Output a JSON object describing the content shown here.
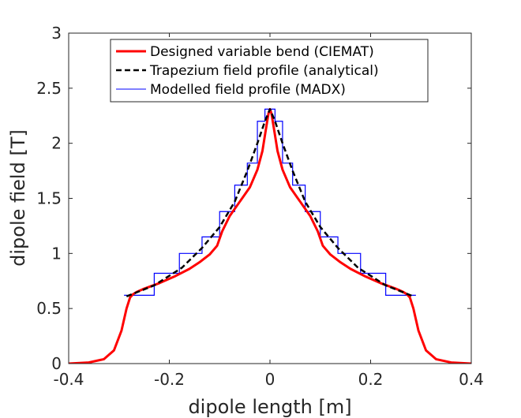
{
  "chart_data": {
    "type": "line",
    "title": "",
    "xlabel": "dipole length [m]",
    "ylabel": "dipole field [T]",
    "xlim": [
      -0.4,
      0.4
    ],
    "ylim": [
      0,
      3
    ],
    "x_ticks": [
      -0.4,
      -0.2,
      0,
      0.2,
      0.4
    ],
    "x_tick_labels": [
      "-0.4",
      "-0.2",
      "0",
      "0.2",
      "0.4"
    ],
    "y_ticks": [
      0,
      0.5,
      1,
      1.5,
      2,
      2.5,
      3
    ],
    "y_tick_labels": [
      "0",
      "0.5",
      "1",
      "1.5",
      "2",
      "2.5",
      "3"
    ],
    "legend_position": "top-center",
    "series": [
      {
        "name": "Designed variable bend (CIEMAT)",
        "style": "solid",
        "color": "#ff0000",
        "x": [
          -0.4,
          -0.36,
          -0.33,
          -0.31,
          -0.295,
          -0.285,
          -0.278,
          -0.272,
          -0.265,
          -0.25,
          -0.22,
          -0.19,
          -0.16,
          -0.14,
          -0.12,
          -0.105,
          -0.095,
          -0.08,
          -0.06,
          -0.04,
          -0.025,
          -0.015,
          -0.008,
          -0.003,
          0,
          0.003,
          0.008,
          0.015,
          0.025,
          0.04,
          0.06,
          0.08,
          0.095,
          0.105,
          0.12,
          0.14,
          0.16,
          0.19,
          0.22,
          0.25,
          0.265,
          0.272,
          0.278,
          0.285,
          0.295,
          0.31,
          0.33,
          0.36,
          0.4
        ],
        "y": [
          0.0,
          0.01,
          0.04,
          0.12,
          0.3,
          0.5,
          0.6,
          0.63,
          0.65,
          0.68,
          0.73,
          0.79,
          0.86,
          0.92,
          0.99,
          1.07,
          1.2,
          1.34,
          1.47,
          1.6,
          1.76,
          1.93,
          2.13,
          2.27,
          2.31,
          2.27,
          2.13,
          1.93,
          1.76,
          1.6,
          1.47,
          1.34,
          1.2,
          1.07,
          0.99,
          0.92,
          0.86,
          0.79,
          0.73,
          0.68,
          0.65,
          0.63,
          0.6,
          0.5,
          0.3,
          0.12,
          0.04,
          0.01,
          0.0
        ]
      },
      {
        "name": "Trapezium field profile (analytical)",
        "style": "dashed",
        "color": "#000000",
        "x": [
          -0.285,
          -0.23,
          -0.175,
          -0.135,
          -0.1,
          -0.07,
          -0.045,
          -0.025,
          -0.01,
          0,
          0.01,
          0.025,
          0.045,
          0.07,
          0.1,
          0.135,
          0.175,
          0.23,
          0.285
        ],
        "y": [
          0.61,
          0.71,
          0.87,
          1.05,
          1.24,
          1.47,
          1.75,
          2.0,
          2.2,
          2.31,
          2.2,
          2.0,
          1.75,
          1.47,
          1.24,
          1.05,
          0.87,
          0.71,
          0.61
        ]
      },
      {
        "name": "Modelled field profile (MADX)",
        "style": "step",
        "color": "#0000ff",
        "x": [
          -0.29,
          -0.23,
          -0.23,
          -0.18,
          -0.18,
          -0.135,
          -0.135,
          -0.1,
          -0.1,
          -0.07,
          -0.07,
          -0.045,
          -0.045,
          -0.025,
          -0.025,
          -0.01,
          -0.01,
          0.01,
          0.01,
          0.025,
          0.025,
          0.045,
          0.045,
          0.07,
          0.07,
          0.1,
          0.1,
          0.135,
          0.135,
          0.18,
          0.18,
          0.23,
          0.23,
          0.29
        ],
        "y": [
          0.62,
          0.62,
          0.82,
          0.82,
          1.0,
          1.0,
          1.15,
          1.15,
          1.38,
          1.38,
          1.62,
          1.62,
          1.82,
          1.82,
          2.2,
          2.2,
          2.31,
          2.31,
          2.2,
          2.2,
          1.82,
          1.82,
          1.62,
          1.62,
          1.38,
          1.38,
          1.15,
          1.15,
          1.0,
          1.0,
          0.82,
          0.82,
          0.62,
          0.62
        ]
      }
    ]
  }
}
